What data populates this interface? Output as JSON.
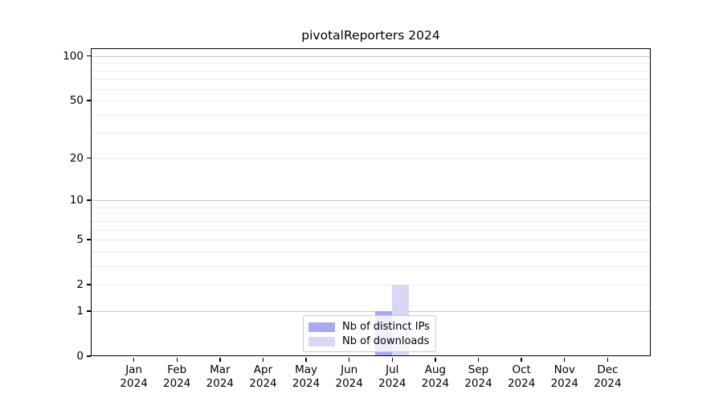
{
  "chart_data": {
    "type": "bar",
    "title": "pivotalReporters 2024",
    "xlabel": "",
    "ylabel": "",
    "categories": [
      "Jan",
      "Feb",
      "Mar",
      "Apr",
      "May",
      "Jun",
      "Jul",
      "Aug",
      "Sep",
      "Oct",
      "Nov",
      "Dec"
    ],
    "year_label": "2024",
    "series": [
      {
        "name": "Nb of distinct IPs",
        "color": "#a9a9f1",
        "values": [
          0,
          0,
          0,
          0,
          0,
          0,
          1,
          0,
          0,
          0,
          0,
          0
        ]
      },
      {
        "name": "Nb of downloads",
        "color": "#d8d8f4",
        "values": [
          0,
          0,
          0,
          0,
          0,
          0,
          2,
          0,
          0,
          0,
          0,
          0
        ]
      }
    ],
    "y_ticks": [
      0,
      1,
      2,
      5,
      10,
      20,
      50,
      100
    ],
    "ylim": [
      0,
      113
    ],
    "scale": "log10(1+y)",
    "grid_major_values": [
      1,
      10,
      100
    ],
    "grid_minor_values": [
      2,
      3,
      4,
      5,
      6,
      7,
      8,
      9,
      20,
      30,
      40,
      50,
      60,
      70,
      80,
      90
    ],
    "grid": "horizontal",
    "legend_position": "bottom-center",
    "colors": {
      "grid_major": "#c9c9c9",
      "grid_minor": "#ececec",
      "axis": "#000000",
      "text": "#000000",
      "background": "#ffffff"
    }
  }
}
